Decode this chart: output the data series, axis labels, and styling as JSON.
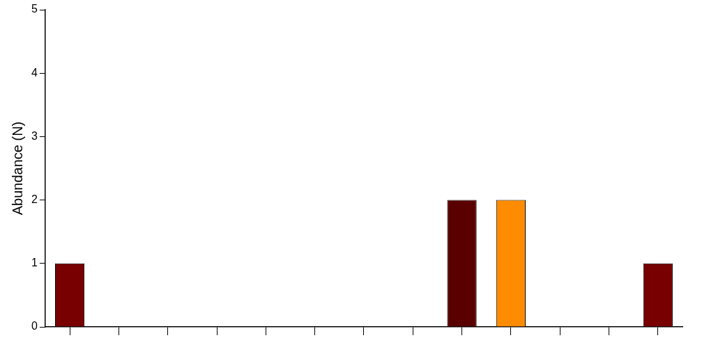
{
  "chart_data": {
    "type": "bar",
    "ylabel": "Abundance (N)",
    "categories": [
      null,
      null,
      null,
      null,
      null,
      null,
      null,
      null,
      null,
      null,
      null,
      null,
      null
    ],
    "values": [
      1,
      null,
      null,
      null,
      null,
      null,
      null,
      null,
      2,
      2,
      null,
      null,
      1
    ],
    "colors": [
      "#780000",
      null,
      null,
      null,
      null,
      null,
      null,
      null,
      "#5a0000",
      "#ff8c00",
      null,
      null,
      "#780000"
    ],
    "ylim": [
      0,
      5
    ],
    "yticks": [
      0,
      1,
      2,
      3,
      4,
      5
    ],
    "grid": false,
    "legend": false,
    "tick_labels": "y"
  }
}
